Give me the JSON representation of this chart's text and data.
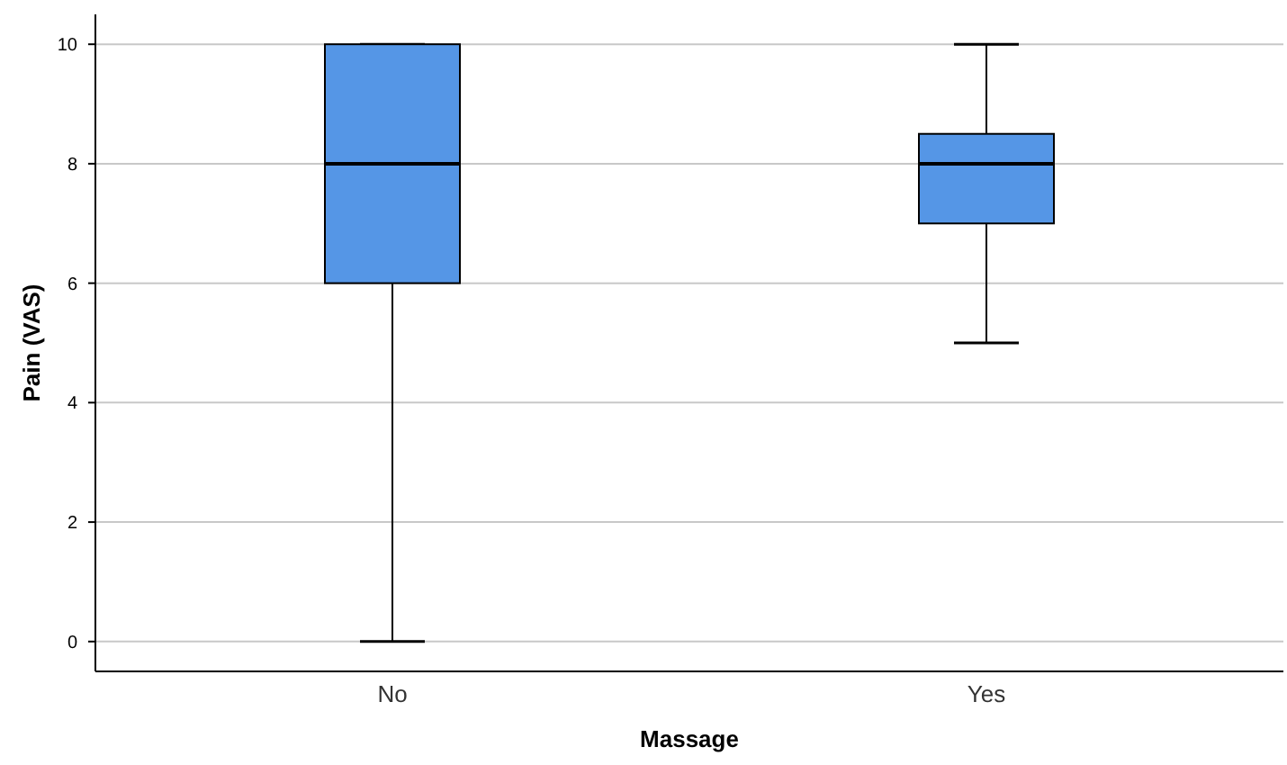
{
  "chart_data": {
    "type": "box",
    "xlabel": "Massage",
    "ylabel": "Pain (VAS)",
    "categories": [
      "No",
      "Yes"
    ],
    "boxes": [
      {
        "low": 0,
        "q1": 6,
        "median": 8,
        "q3": 10,
        "high": 10
      },
      {
        "low": 5,
        "q1": 7,
        "median": 8,
        "q3": 8.5,
        "high": 10
      }
    ],
    "color": "#5596e6",
    "ylim": [
      -0.5,
      10.5
    ],
    "yticks": [
      0,
      2,
      4,
      6,
      8,
      10
    ],
    "grid": "y"
  }
}
